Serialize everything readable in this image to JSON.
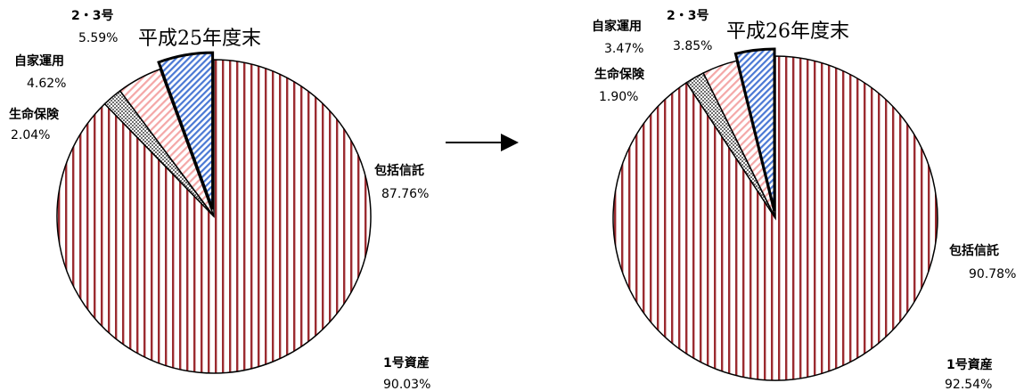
{
  "chart_data": [
    {
      "type": "pie",
      "title": "平成25年度末",
      "slices": [
        {
          "name": "包括信託",
          "value": 87.76,
          "label": "87.76%",
          "pattern": "stripes-red"
        },
        {
          "name": "生命保険",
          "value": 2.04,
          "label": "2.04%",
          "pattern": "checker-gray"
        },
        {
          "name": "自家運用",
          "value": 4.62,
          "label": "4.62%",
          "pattern": "diag-pink"
        },
        {
          "name": "2・3号",
          "value": 5.59,
          "label": "5.59%",
          "pattern": "diag-blue",
          "exploded": true
        }
      ],
      "group": {
        "name": "1号資産",
        "value": 90.03,
        "label": "90.03%"
      }
    },
    {
      "type": "pie",
      "title": "平成26年度末",
      "slices": [
        {
          "name": "包括信託",
          "value": 90.78,
          "label": "90.78%",
          "pattern": "stripes-red"
        },
        {
          "name": "生命保険",
          "value": 1.9,
          "label": "1.90%",
          "pattern": "checker-gray"
        },
        {
          "name": "自家運用",
          "value": 3.47,
          "label": "3.47%",
          "pattern": "diag-pink"
        },
        {
          "name": "2・3号",
          "value": 3.85,
          "label": "3.85%",
          "pattern": "diag-blue",
          "exploded": true
        }
      ],
      "group": {
        "name": "1号資産",
        "value": 92.54,
        "label": "92.54%"
      }
    }
  ],
  "colors": {
    "stripe": "#9b2b30",
    "pink": "#f4a7a7",
    "blue": "#4a78d4",
    "gray": "#6f6f6f",
    "outline": "#000000"
  },
  "arrow": "right-arrow"
}
